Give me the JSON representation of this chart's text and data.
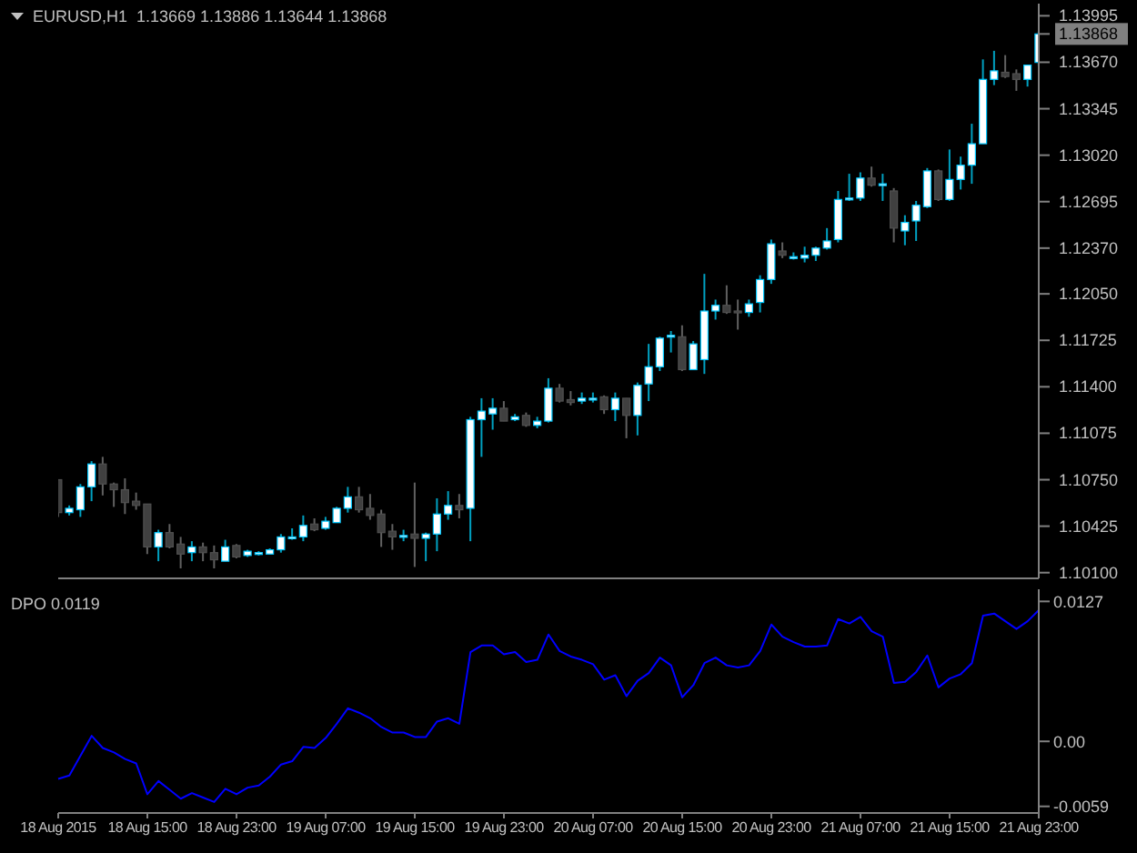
{
  "chart_data": [
    {
      "type": "candlestick",
      "title": "EURUSD,H1  1.13669 1.13886 1.13644 1.13868",
      "ohlc": [
        [
          1.1075,
          1.1075,
          1.1049,
          1.1052
        ],
        [
          1.1052,
          1.1057,
          1.105,
          1.1055
        ],
        [
          1.1054,
          1.1072,
          1.1049,
          1.107
        ],
        [
          1.107,
          1.1088,
          1.106,
          1.1086
        ],
        [
          1.1086,
          1.1091,
          1.1064,
          1.1072
        ],
        [
          1.1072,
          1.1073,
          1.1056,
          1.1068
        ],
        [
          1.1068,
          1.1076,
          1.1051,
          1.1059
        ],
        [
          1.106,
          1.1066,
          1.1054,
          1.1057
        ],
        [
          1.1058,
          1.1058,
          1.1023,
          1.1028
        ],
        [
          1.1028,
          1.104,
          1.1018,
          1.1038
        ],
        [
          1.1038,
          1.1044,
          1.1027,
          1.1028
        ],
        [
          1.103,
          1.1035,
          1.1013,
          1.1023
        ],
        [
          1.1024,
          1.1032,
          1.1018,
          1.1028
        ],
        [
          1.1028,
          1.1031,
          1.1018,
          1.1024
        ],
        [
          1.1024,
          1.1029,
          1.1013,
          1.1019
        ],
        [
          1.1018,
          1.1033,
          1.1018,
          1.1028
        ],
        [
          1.1029,
          1.103,
          1.102,
          1.1021
        ],
        [
          1.1022,
          1.1026,
          1.1021,
          1.1025
        ],
        [
          1.1024,
          1.1025,
          1.1022,
          1.1024
        ],
        [
          1.1023,
          1.1027,
          1.1023,
          1.1026
        ],
        [
          1.1026,
          1.1037,
          1.1024,
          1.1035
        ],
        [
          1.1034,
          1.1041,
          1.1033,
          1.1035
        ],
        [
          1.1035,
          1.105,
          1.1032,
          1.1043
        ],
        [
          1.1044,
          1.1048,
          1.1039,
          1.104
        ],
        [
          1.1041,
          1.1049,
          1.104,
          1.1046
        ],
        [
          1.1045,
          1.1056,
          1.1045,
          1.1055
        ],
        [
          1.1055,
          1.107,
          1.1052,
          1.1063
        ],
        [
          1.1063,
          1.107,
          1.1052,
          1.1054
        ],
        [
          1.1055,
          1.1065,
          1.1047,
          1.105
        ],
        [
          1.1051,
          1.1054,
          1.1028,
          1.1038
        ],
        [
          1.1039,
          1.1044,
          1.1026,
          1.1035
        ],
        [
          1.1036,
          1.104,
          1.1032,
          1.1036
        ],
        [
          1.1037,
          1.1073,
          1.1014,
          1.1034
        ],
        [
          1.1034,
          1.1038,
          1.1018,
          1.1037
        ],
        [
          1.1037,
          1.1062,
          1.1025,
          1.1051
        ],
        [
          1.1051,
          1.1067,
          1.1047,
          1.1057
        ],
        [
          1.1057,
          1.1065,
          1.1048,
          1.1054
        ],
        [
          1.1055,
          1.1119,
          1.1032,
          1.1117
        ],
        [
          1.1117,
          1.1132,
          1.1091,
          1.1123
        ],
        [
          1.1121,
          1.1132,
          1.111,
          1.1125
        ],
        [
          1.1125,
          1.113,
          1.1116,
          1.1116
        ],
        [
          1.1117,
          1.1121,
          1.1116,
          1.1119
        ],
        [
          1.112,
          1.1122,
          1.1112,
          1.1113
        ],
        [
          1.1113,
          1.1119,
          1.1111,
          1.1116
        ],
        [
          1.1116,
          1.1146,
          1.1115,
          1.1139
        ],
        [
          1.1139,
          1.1142,
          1.1129,
          1.113
        ],
        [
          1.1131,
          1.1137,
          1.1127,
          1.1129
        ],
        [
          1.113,
          1.1136,
          1.1128,
          1.1132
        ],
        [
          1.1132,
          1.1136,
          1.1129,
          1.1132
        ],
        [
          1.1133,
          1.1134,
          1.1121,
          1.1124
        ],
        [
          1.1124,
          1.1136,
          1.1116,
          1.1132
        ],
        [
          1.1132,
          1.1132,
          1.1104,
          1.112
        ],
        [
          1.112,
          1.1143,
          1.1106,
          1.1141
        ],
        [
          1.1142,
          1.117,
          1.113,
          1.1154
        ],
        [
          1.1154,
          1.1175,
          1.1151,
          1.1174
        ],
        [
          1.1176,
          1.1179,
          1.1164,
          1.1176
        ],
        [
          1.1175,
          1.1183,
          1.1151,
          1.1152
        ],
        [
          1.1152,
          1.1172,
          1.1152,
          1.117
        ],
        [
          1.1159,
          1.1219,
          1.1149,
          1.1193
        ],
        [
          1.1193,
          1.1201,
          1.1187,
          1.1197
        ],
        [
          1.1197,
          1.1211,
          1.1191,
          1.1192
        ],
        [
          1.1193,
          1.1201,
          1.118,
          1.1192
        ],
        [
          1.1192,
          1.1201,
          1.1189,
          1.1198
        ],
        [
          1.1199,
          1.1218,
          1.1192,
          1.1215
        ],
        [
          1.1215,
          1.1243,
          1.1212,
          1.124
        ],
        [
          1.1235,
          1.1241,
          1.123,
          1.1232
        ],
        [
          1.1231,
          1.1234,
          1.1229,
          1.1231
        ],
        [
          1.123,
          1.1238,
          1.1227,
          1.1232
        ],
        [
          1.1232,
          1.1238,
          1.1228,
          1.1237
        ],
        [
          1.1237,
          1.1251,
          1.1236,
          1.1242
        ],
        [
          1.1243,
          1.1277,
          1.1241,
          1.1271
        ],
        [
          1.1271,
          1.1289,
          1.127,
          1.1272
        ],
        [
          1.1272,
          1.129,
          1.127,
          1.1286
        ],
        [
          1.1286,
          1.1294,
          1.128,
          1.1281
        ],
        [
          1.1281,
          1.1289,
          1.127,
          1.1282
        ],
        [
          1.1277,
          1.1279,
          1.1241,
          1.1251
        ],
        [
          1.1249,
          1.126,
          1.1239,
          1.1255
        ],
        [
          1.1256,
          1.127,
          1.1242,
          1.1267
        ],
        [
          1.1266,
          1.1293,
          1.1265,
          1.1291
        ],
        [
          1.1291,
          1.1292,
          1.127,
          1.1271
        ],
        [
          1.1271,
          1.1306,
          1.127,
          1.1285
        ],
        [
          1.1285,
          1.1301,
          1.1278,
          1.1295
        ],
        [
          1.1295,
          1.1324,
          1.1282,
          1.131
        ],
        [
          1.131,
          1.1369,
          1.131,
          1.1355
        ],
        [
          1.1355,
          1.1375,
          1.1351,
          1.1361
        ],
        [
          1.136,
          1.1372,
          1.1356,
          1.1357
        ],
        [
          1.1359,
          1.1362,
          1.1347,
          1.1355
        ],
        [
          1.1355,
          1.1365,
          1.135,
          1.1365
        ],
        [
          1.13669,
          1.13886,
          1.13644,
          1.13868
        ]
      ],
      "ylim": [
        1.1006,
        1.1408
      ],
      "yticks": [
        {
          "value": 1.101,
          "label": "1.10100"
        },
        {
          "value": 1.10425,
          "label": "1.10425"
        },
        {
          "value": 1.1075,
          "label": "1.10750"
        },
        {
          "value": 1.11075,
          "label": "1.11075"
        },
        {
          "value": 1.114,
          "label": "1.11400"
        },
        {
          "value": 1.11725,
          "label": "1.11725"
        },
        {
          "value": 1.1205,
          "label": "1.12050"
        },
        {
          "value": 1.1237,
          "label": "1.12370"
        },
        {
          "value": 1.12695,
          "label": "1.12695"
        },
        {
          "value": 1.1302,
          "label": "1.13020"
        },
        {
          "value": 1.13345,
          "label": "1.13345"
        },
        {
          "value": 1.1367,
          "label": "1.13670"
        },
        {
          "value": 1.13868,
          "label": "1.13868"
        },
        {
          "value": 1.13995,
          "label": "1.13995"
        }
      ],
      "tick_labels": "y"
    },
    {
      "type": "line",
      "title": "DPO 0.0119",
      "categories": [
        "18 Aug 2015",
        null,
        null,
        null,
        null,
        null,
        null,
        null,
        "18 Aug 15:00",
        null,
        null,
        null,
        null,
        null,
        null,
        null,
        "18 Aug 23:00",
        null,
        null,
        null,
        null,
        null,
        null,
        null,
        "19 Aug 07:00",
        null,
        null,
        null,
        null,
        null,
        null,
        null,
        "19 Aug 15:00",
        null,
        null,
        null,
        null,
        null,
        null,
        null,
        "19 Aug 23:00",
        null,
        null,
        null,
        null,
        null,
        null,
        null,
        "20 Aug 07:00",
        null,
        null,
        null,
        null,
        null,
        null,
        null,
        "20 Aug 15:00",
        null,
        null,
        null,
        null,
        null,
        null,
        null,
        "20 Aug 23:00",
        null,
        null,
        null,
        null,
        null,
        null,
        null,
        "21 Aug 07:00",
        null,
        null,
        null,
        null,
        null,
        null,
        null,
        "21 Aug 15:00",
        null,
        null,
        null,
        null,
        null,
        null,
        null,
        "21 Aug 23:00"
      ],
      "series": [
        {
          "color": "#0000ff",
          "values": [
            -0.0034,
            -0.0031,
            -0.0013,
            0.0005,
            -0.0006,
            -0.001,
            -0.0016,
            -0.002,
            -0.0048,
            -0.0036,
            -0.0044,
            -0.0052,
            -0.0047,
            -0.0051,
            -0.0055,
            -0.0043,
            -0.0048,
            -0.0042,
            -0.004,
            -0.0032,
            -0.0021,
            -0.0018,
            -0.0005,
            -0.0006,
            0.0003,
            0.0016,
            0.003,
            0.0026,
            0.0021,
            0.0013,
            0.0008,
            0.0008,
            0.0004,
            0.0004,
            0.0018,
            0.0021,
            0.0016,
            0.0081,
            0.0087,
            0.0087,
            0.0079,
            0.0081,
            0.0072,
            0.0074,
            0.0097,
            0.0082,
            0.0077,
            0.0074,
            0.007,
            0.0056,
            0.006,
            0.0041,
            0.0055,
            0.0062,
            0.0076,
            0.0069,
            0.004,
            0.0051,
            0.0071,
            0.0076,
            0.0069,
            0.0067,
            0.0069,
            0.0082,
            0.0106,
            0.0095,
            0.009,
            0.0086,
            0.0086,
            0.0087,
            0.0111,
            0.0107,
            0.0113,
            0.01,
            0.0095,
            0.0053,
            0.0054,
            0.0063,
            0.0078,
            0.0049,
            0.0057,
            0.0061,
            0.0071,
            0.0114,
            0.0116,
            0.0109,
            0.0102,
            0.0109,
            0.0119
          ]
        }
      ],
      "ylim": [
        -0.0065,
        0.0138
      ],
      "yticks": [
        0.0127,
        {
          "value": 0,
          "label": "0.00"
        },
        -0.0059
      ],
      "marker": "none"
    }
  ]
}
